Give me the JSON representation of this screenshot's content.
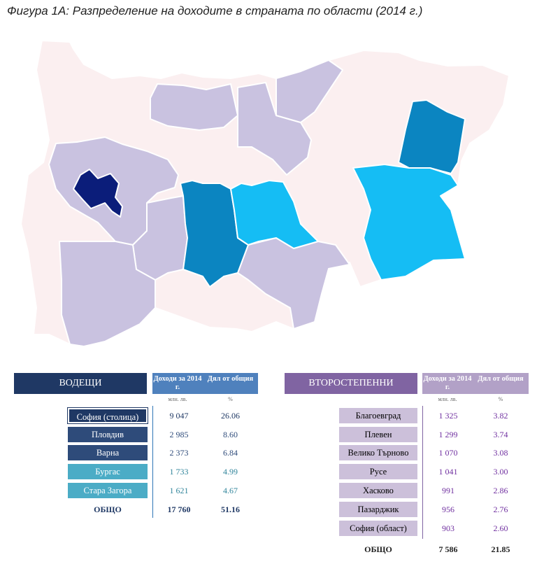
{
  "title": "Фигура 1А: Разпределение на доходите в страната по области (2014 г.)",
  "map": {
    "colors": {
      "sofia_capital": "#0b1d7a",
      "plovdiv_varna": "#0b85c1",
      "burgas_stara_zagora": "#15bdf4",
      "secondary": "#c9c2e0",
      "other": "#fbeff0",
      "border": "#ffffff"
    }
  },
  "leaders": {
    "label": "ВОДЕЩИ",
    "col1": "Доходи за 2014 г.",
    "col2": "Дял от общия",
    "unit1": "млн. лв.",
    "unit2": "%",
    "rows": [
      {
        "name": "София (столица)",
        "income": "9 047",
        "share": "26.06"
      },
      {
        "name": "Пловдив",
        "income": "2 985",
        "share": "8.60"
      },
      {
        "name": "Варна",
        "income": "2 373",
        "share": "6.84"
      },
      {
        "name": "Бургас",
        "income": "1 733",
        "share": "4.99"
      },
      {
        "name": "Стара Загора",
        "income": "1 621",
        "share": "4.67"
      }
    ],
    "total_label": "ОБЩО",
    "total_income": "17 760",
    "total_share": "51.16"
  },
  "secondary": {
    "label": "ВТОРОСТЕПЕННИ",
    "col1": "Доходи за 2014 г.",
    "col2": "Дял от общия",
    "unit1": "млн. лв.",
    "unit2": "%",
    "rows": [
      {
        "name": "Благоевград",
        "income": "1 325",
        "share": "3.82"
      },
      {
        "name": "Плевен",
        "income": "1 299",
        "share": "3.74"
      },
      {
        "name": "Велико Търново",
        "income": "1 070",
        "share": "3.08"
      },
      {
        "name": "Русе",
        "income": "1 041",
        "share": "3.00"
      },
      {
        "name": "Хасково",
        "income": "991",
        "share": "2.86"
      },
      {
        "name": "Пазарджик",
        "income": "956",
        "share": "2.76"
      },
      {
        "name": "София (област)",
        "income": "903",
        "share": "2.60"
      }
    ],
    "total_label": "ОБЩО",
    "total_income": "7 586",
    "total_share": "21.85"
  }
}
